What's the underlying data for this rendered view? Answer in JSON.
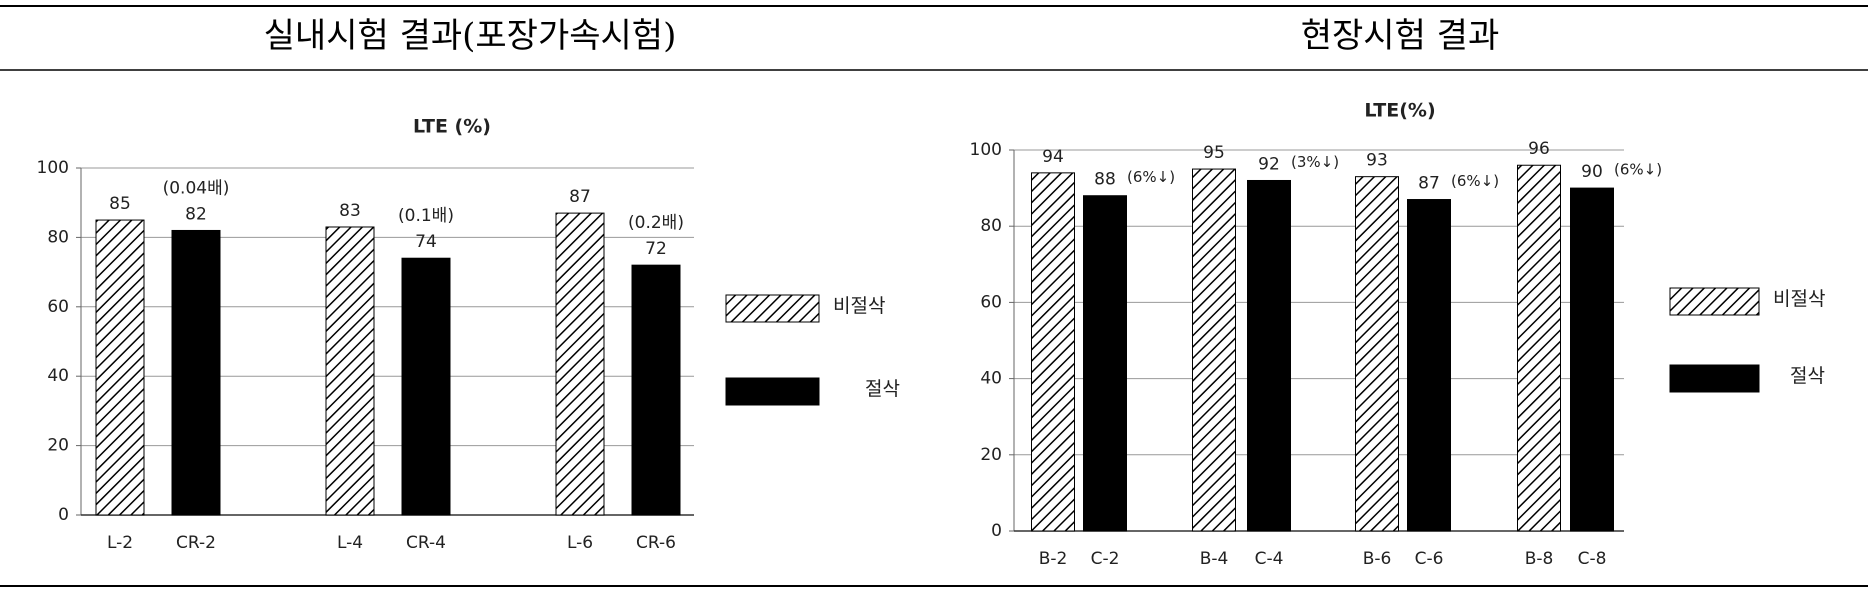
{
  "headers": [
    "실내시험 결과(포장가속시험)",
    "현장시험 결과"
  ],
  "chart_data": [
    {
      "type": "bar",
      "title": "LTE (%)",
      "categories": [
        "L-2",
        "CR-2",
        "L-4",
        "CR-4",
        "L-6",
        "CR-6"
      ],
      "series": [
        {
          "name": "비절삭",
          "color": "#000000",
          "pattern": "hatch",
          "values": [
            85,
            null,
            83,
            null,
            87,
            null
          ]
        },
        {
          "name": "절삭",
          "color": "#000000",
          "pattern": "solid",
          "values": [
            null,
            82,
            null,
            74,
            null,
            72
          ]
        }
      ],
      "annotations": [
        null,
        "(0.04배)",
        null,
        "(0.1배)",
        null,
        "(0.2배)"
      ],
      "ylim": [
        0,
        100
      ],
      "yticks": [
        0,
        20,
        40,
        60,
        80,
        100
      ],
      "grid": true,
      "legend": "right"
    },
    {
      "type": "bar",
      "title": "LTE(%)",
      "categories": [
        "B-2",
        "C-2",
        "B-4",
        "C-4",
        "B-6",
        "C-6",
        "B-8",
        "C-8"
      ],
      "series": [
        {
          "name": "비절삭",
          "color": "#000000",
          "pattern": "hatch",
          "values": [
            94,
            null,
            95,
            null,
            93,
            null,
            96,
            null
          ]
        },
        {
          "name": "절삭",
          "color": "#000000",
          "pattern": "solid",
          "values": [
            null,
            88,
            null,
            92,
            null,
            87,
            null,
            90
          ]
        }
      ],
      "annotations": [
        null,
        "(6%↓)",
        null,
        "(3%↓)",
        null,
        "(6%↓)",
        null,
        "(6%↓)"
      ],
      "ylim": [
        0,
        100
      ],
      "yticks": [
        0,
        20,
        40,
        60,
        80,
        100
      ],
      "grid": true,
      "legend": "right"
    }
  ]
}
